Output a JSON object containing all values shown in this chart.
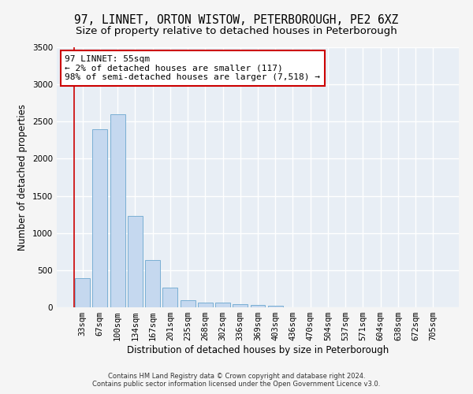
{
  "title_line1": "97, LINNET, ORTON WISTOW, PETERBOROUGH, PE2 6XZ",
  "title_line2": "Size of property relative to detached houses in Peterborough",
  "xlabel": "Distribution of detached houses by size in Peterborough",
  "ylabel": "Number of detached properties",
  "footer_line1": "Contains HM Land Registry data © Crown copyright and database right 2024.",
  "footer_line2": "Contains public sector information licensed under the Open Government Licence v3.0.",
  "categories": [
    "33sqm",
    "67sqm",
    "100sqm",
    "134sqm",
    "167sqm",
    "201sqm",
    "235sqm",
    "268sqm",
    "302sqm",
    "336sqm",
    "369sqm",
    "403sqm",
    "436sqm",
    "470sqm",
    "504sqm",
    "537sqm",
    "571sqm",
    "604sqm",
    "638sqm",
    "672sqm",
    "705sqm"
  ],
  "values": [
    390,
    2400,
    2600,
    1230,
    640,
    260,
    95,
    65,
    60,
    45,
    30,
    25,
    0,
    0,
    0,
    0,
    0,
    0,
    0,
    0,
    0
  ],
  "bar_color": "#c5d8ef",
  "bar_edge_color": "#7aafd4",
  "annotation_text": "97 LINNET: 55sqm\n← 2% of detached houses are smaller (117)\n98% of semi-detached houses are larger (7,518) →",
  "annotation_box_color": "#ffffff",
  "annotation_box_edgecolor": "#cc0000",
  "vline_color": "#cc0000",
  "ylim": [
    0,
    3500
  ],
  "yticks": [
    0,
    500,
    1000,
    1500,
    2000,
    2500,
    3000,
    3500
  ],
  "bg_color": "#e8eef5",
  "grid_color": "#ffffff",
  "title1_fontsize": 10.5,
  "title2_fontsize": 9.5,
  "axis_label_fontsize": 8.5,
  "tick_fontsize": 7.5,
  "annotation_fontsize": 8,
  "footer_fontsize": 6
}
